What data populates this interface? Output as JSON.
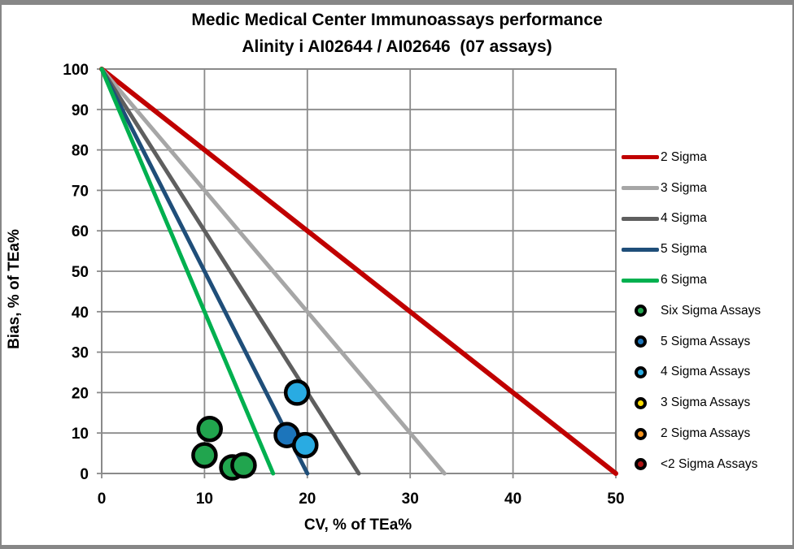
{
  "title": {
    "line1": "Medic Medical Center Immunoassays performance",
    "line2": "Alinity i AI02644 / AI02646  (07 assays)"
  },
  "chart_data": {
    "type": "scatter",
    "title": "Medic Medical Center Immunoassays performance Alinity i AI02644 / AI02646 (07 assays)",
    "xlabel": "CV, % of TEa%",
    "ylabel": "Bias, % of TEa%",
    "xlim": [
      0,
      50
    ],
    "ylim": [
      0,
      100
    ],
    "xticks": [
      0,
      10,
      20,
      30,
      40,
      50
    ],
    "yticks": [
      0,
      10,
      20,
      30,
      40,
      50,
      60,
      70,
      80,
      90,
      100
    ],
    "grid": true,
    "legend_position": "right",
    "colors": {
      "grid": "#8a8a8a",
      "plot_border": "#8a8a8a",
      "frame": "#878787",
      "text": "#000000"
    },
    "sigma_lines": [
      {
        "label": "2 Sigma",
        "color": "#C00000",
        "start": [
          0,
          100
        ],
        "x_intercept": 50
      },
      {
        "label": "3 Sigma",
        "color": "#A6A6A6",
        "start": [
          0,
          100
        ],
        "x_intercept": 33.33
      },
      {
        "label": "4 Sigma",
        "color": "#5F5F5F",
        "start": [
          0,
          100
        ],
        "x_intercept": 25
      },
      {
        "label": "5 Sigma",
        "color": "#1F4E79",
        "start": [
          0,
          100
        ],
        "x_intercept": 20
      },
      {
        "label": "6 Sigma",
        "color": "#00B04F",
        "start": [
          0,
          100
        ],
        "x_intercept": 16.67
      }
    ],
    "marker_legend": [
      {
        "label": "Six Sigma Assays",
        "color": "#21A54E"
      },
      {
        "label": "5 Sigma Assays",
        "color": "#1C75BB"
      },
      {
        "label": "4 Sigma Assays",
        "color": "#29ABE2"
      },
      {
        "label": "3 Sigma Assays",
        "color": "#FFDD00"
      },
      {
        "label": "2 Sigma Assays",
        "color": "#F7941D"
      },
      {
        "label": "<2 Sigma Assays",
        "color": "#AD1313"
      }
    ],
    "points": [
      {
        "x": 10.5,
        "y": 11,
        "category": "Six Sigma Assays"
      },
      {
        "x": 10,
        "y": 4.5,
        "category": "Six Sigma Assays"
      },
      {
        "x": 12.7,
        "y": 1.5,
        "category": "Six Sigma Assays"
      },
      {
        "x": 13.8,
        "y": 2,
        "category": "Six Sigma Assays"
      },
      {
        "x": 18,
        "y": 9.5,
        "category": "5 Sigma Assays"
      },
      {
        "x": 19,
        "y": 20,
        "category": "4 Sigma Assays"
      },
      {
        "x": 19.8,
        "y": 7,
        "category": "4 Sigma Assays"
      }
    ]
  }
}
